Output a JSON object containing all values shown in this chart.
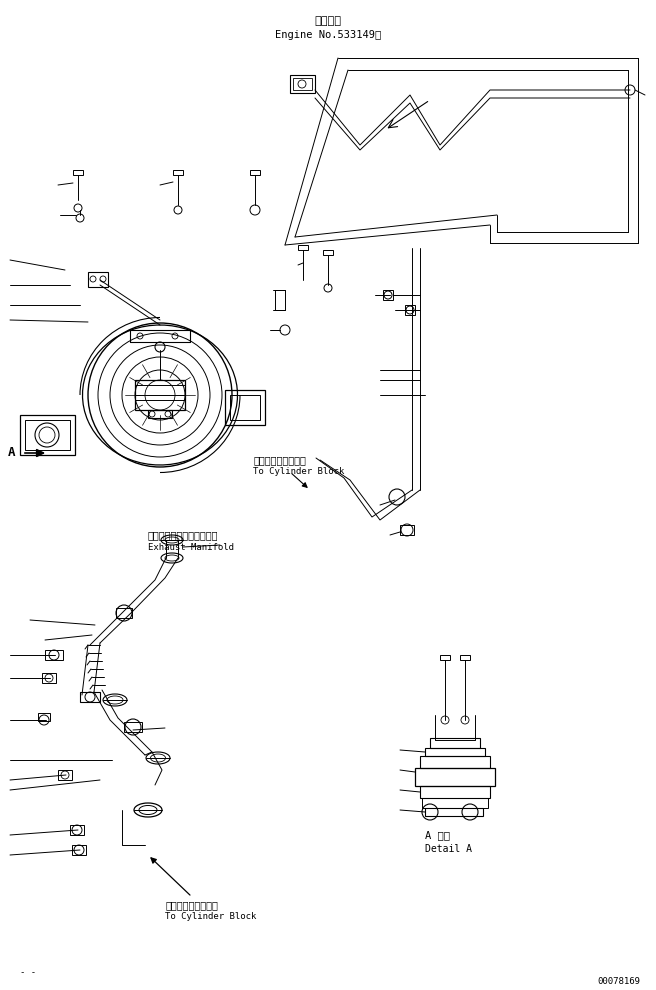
{
  "bg_color": "#ffffff",
  "line_color": "#000000",
  "title_jp": "通用号機",
  "title_en": "Engine No.533149～",
  "label1_jp": "シリンダブロックへ",
  "label1_en": "To Cylinder Block",
  "label2_jp": "エキゾーストマニホールド",
  "label2_en": "Exhaust Manifold",
  "label3_jp": "シリンダブロックへ",
  "label3_en": "To Cylinder Block",
  "detail_jp": "A 詳細",
  "detail_en": "Detail A",
  "part_num": "00078169",
  "fig_label": "- -"
}
